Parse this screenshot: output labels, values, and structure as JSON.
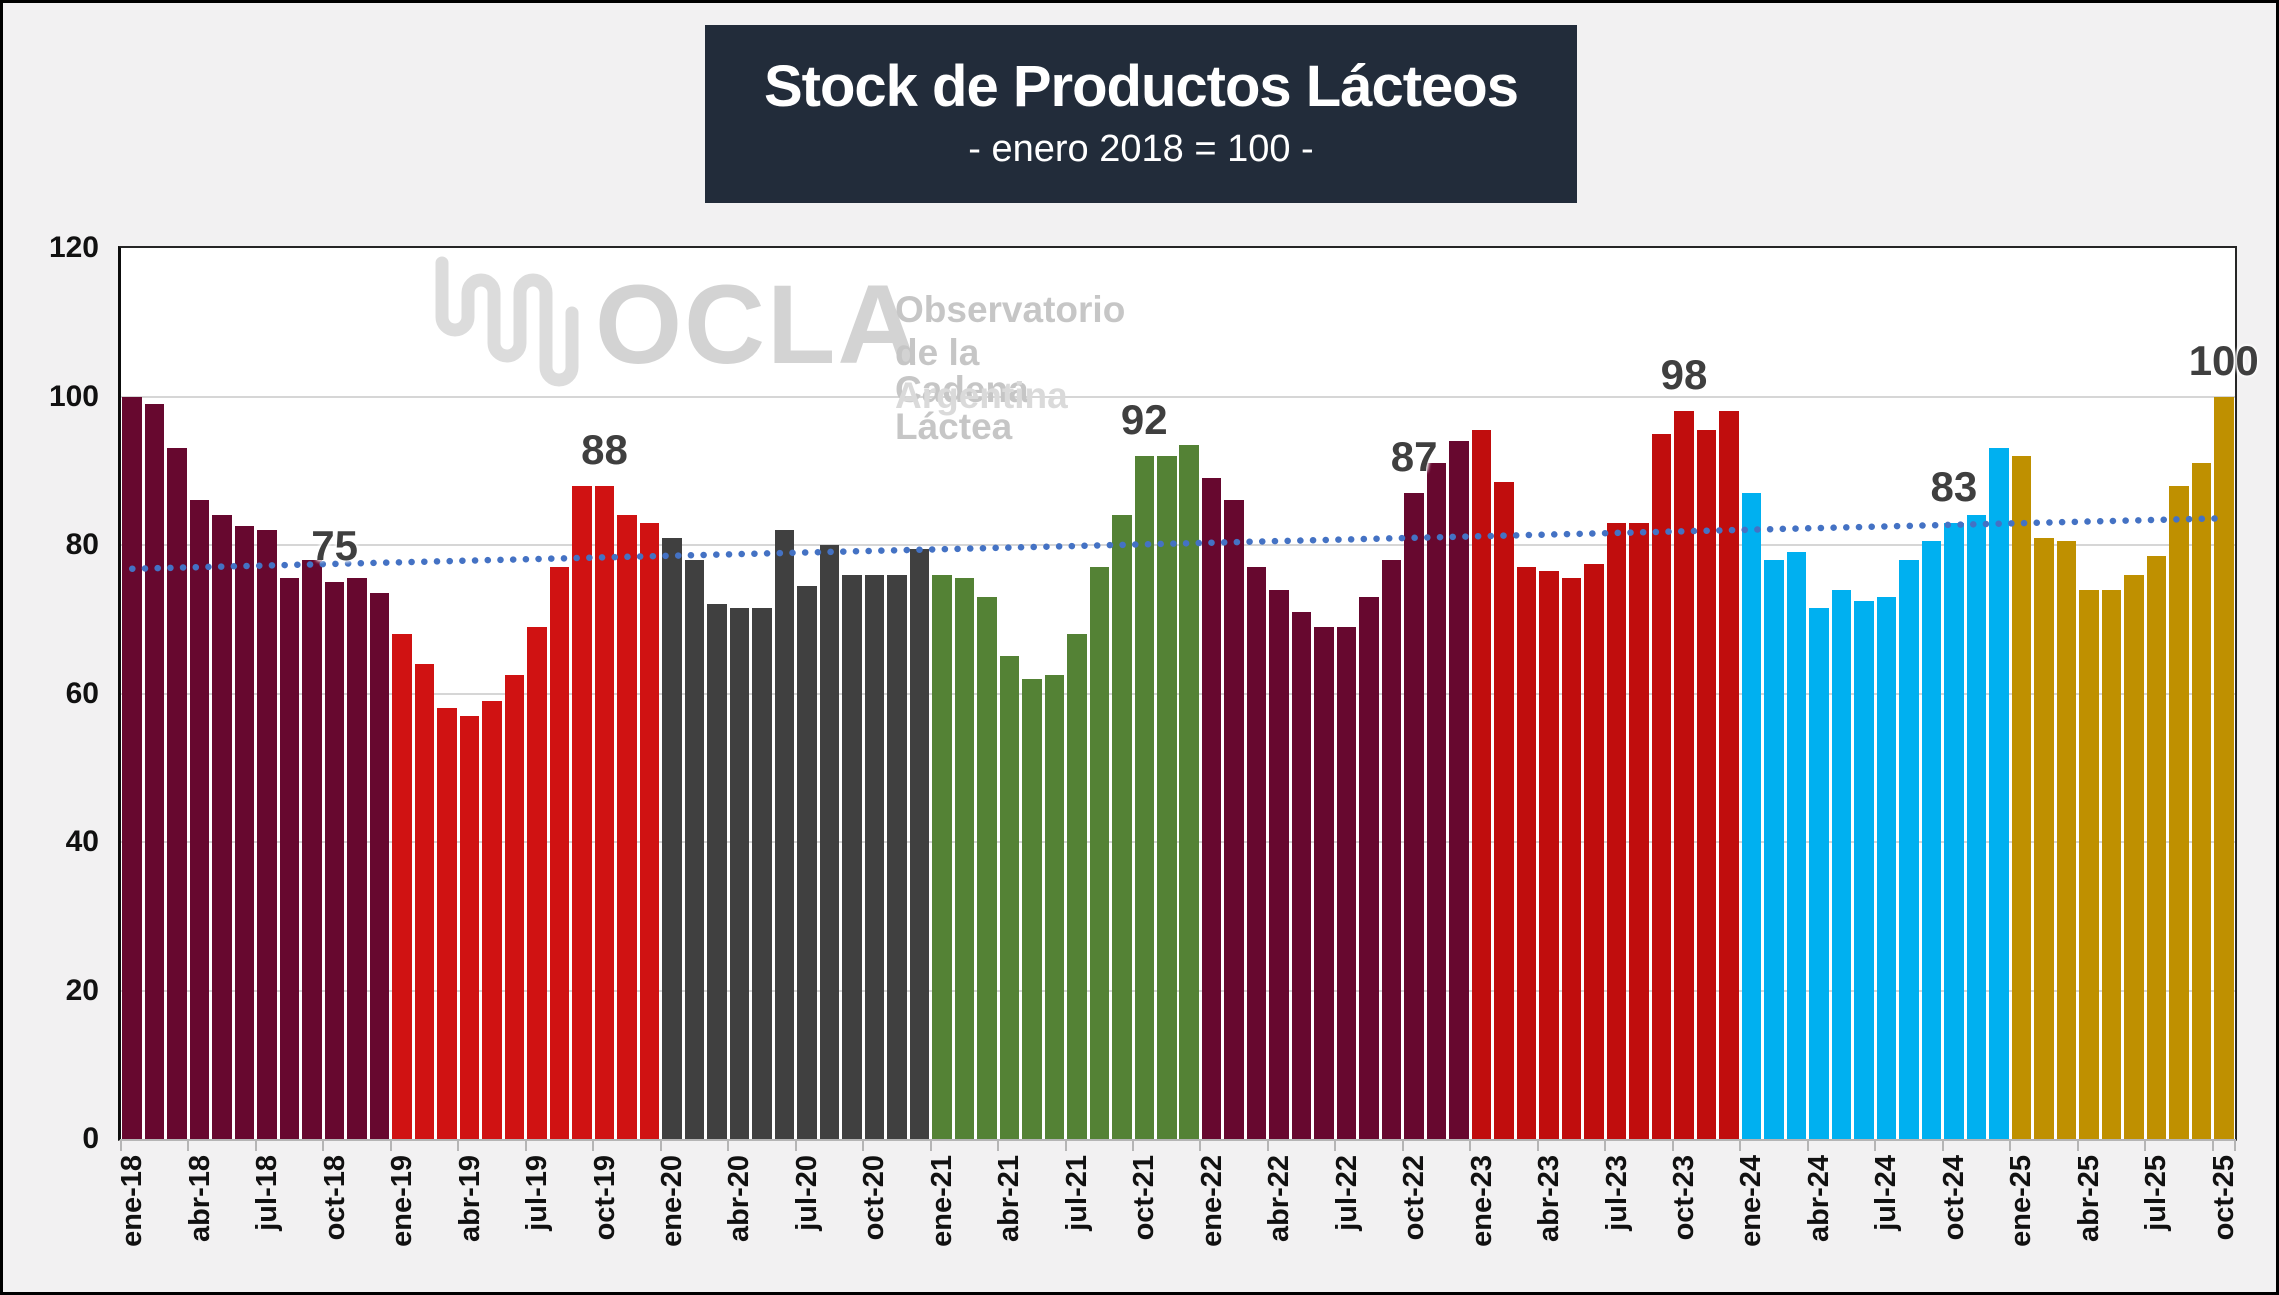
{
  "chart_data": {
    "type": "bar",
    "title": "Stock de Productos Lácteos",
    "subtitle": "- enero 2018 = 100 -",
    "xlabel": "",
    "ylabel": "",
    "ylim": [
      0,
      120
    ],
    "y_ticks": [
      0,
      20,
      40,
      60,
      80,
      100,
      120
    ],
    "grid": true,
    "legend": false,
    "x_tick_interval": 3,
    "categories": [
      "ene-18",
      "feb-18",
      "mar-18",
      "abr-18",
      "may-18",
      "jun-18",
      "jul-18",
      "ago-18",
      "sep-18",
      "oct-18",
      "nov-18",
      "dic-18",
      "ene-19",
      "feb-19",
      "mar-19",
      "abr-19",
      "may-19",
      "jun-19",
      "jul-19",
      "ago-19",
      "sep-19",
      "oct-19",
      "nov-19",
      "dic-19",
      "ene-20",
      "feb-20",
      "mar-20",
      "abr-20",
      "may-20",
      "jun-20",
      "jul-20",
      "ago-20",
      "sep-20",
      "oct-20",
      "nov-20",
      "dic-20",
      "ene-21",
      "feb-21",
      "mar-21",
      "abr-21",
      "may-21",
      "jun-21",
      "jul-21",
      "ago-21",
      "sep-21",
      "oct-21",
      "nov-21",
      "dic-21",
      "ene-22",
      "feb-22",
      "mar-22",
      "abr-22",
      "may-22",
      "jun-22",
      "jul-22",
      "ago-22",
      "sep-22",
      "oct-22",
      "nov-22",
      "dic-22",
      "ene-23",
      "feb-23",
      "mar-23",
      "abr-23",
      "may-23",
      "jun-23",
      "jul-23",
      "ago-23",
      "sep-23",
      "oct-23",
      "nov-23",
      "dic-23",
      "ene-24",
      "feb-24",
      "mar-24",
      "abr-24",
      "may-24",
      "jun-24",
      "jul-24",
      "ago-24",
      "sep-24",
      "oct-24",
      "nov-24",
      "dic-24",
      "ene-25",
      "feb-25",
      "mar-25",
      "abr-25",
      "may-25",
      "jun-25",
      "jul-25",
      "ago-25",
      "sep-25",
      "oct-25"
    ],
    "series": [
      {
        "name": "2018",
        "color": "#67082f",
        "values": [
          100,
          99,
          93,
          86,
          84,
          82.5,
          82,
          75.5,
          78,
          75,
          75.5,
          73.5
        ]
      },
      {
        "name": "2019",
        "color": "#d01212",
        "values": [
          68,
          64,
          58,
          57,
          59,
          62.5,
          69,
          77,
          88,
          88,
          84,
          83
        ]
      },
      {
        "name": "2020",
        "color": "#404040",
        "values": [
          81,
          78,
          72,
          71.5,
          71.5,
          82,
          74.5,
          80,
          76,
          76,
          76,
          79.5
        ]
      },
      {
        "name": "2021",
        "color": "#548235",
        "values": [
          76,
          75.5,
          73,
          65,
          62,
          62.5,
          68,
          77,
          84,
          92,
          92,
          93.5
        ]
      },
      {
        "name": "2022",
        "color": "#67082f",
        "values": [
          89,
          86,
          77,
          74,
          71,
          69,
          69,
          73,
          78,
          87,
          91,
          94
        ]
      },
      {
        "name": "2023",
        "color": "#c00d0d",
        "values": [
          95.5,
          88.5,
          77,
          76.5,
          75.5,
          77.5,
          83,
          83,
          95,
          98,
          95.5,
          98
        ]
      },
      {
        "name": "2024",
        "color": "#00b0f0",
        "values": [
          87,
          78,
          79,
          71.5,
          74,
          72.5,
          73,
          78,
          80.5,
          83,
          84,
          93
        ]
      },
      {
        "name": "2025",
        "color": "#bf9000",
        "values": [
          92,
          81,
          80.5,
          74,
          74,
          76,
          78.5,
          88,
          91,
          100
        ]
      }
    ],
    "data_labels": [
      {
        "category": "oct-18",
        "text": "75"
      },
      {
        "category": "oct-19",
        "text": "88"
      },
      {
        "category": "oct-21",
        "text": "92"
      },
      {
        "category": "oct-22",
        "text": "87"
      },
      {
        "category": "oct-23",
        "text": "98"
      },
      {
        "category": "oct-24",
        "text": "83"
      },
      {
        "category": "oct-25",
        "text": "100"
      }
    ],
    "trend": {
      "style": "dotted",
      "color": "#4472c4",
      "start_value": 76.8,
      "end_value": 83.6
    },
    "watermark": {
      "logo_text": "OCLA",
      "line1": "Observatorio",
      "line2": "de la Cadena Láctea",
      "line3": "Argentina"
    },
    "colors": {
      "page_bg": "#f2f1f2",
      "title_bg": "#222c3a",
      "title_text": "#ffffff",
      "plot_bg": "#ffffff",
      "grid": "#d6d6d6",
      "axis_text": "#111111",
      "data_label": "#3f3f3f",
      "watermark_logo": "#d3d3d3",
      "watermark_text": "#c6c6c6",
      "watermark_light": "#dadada"
    }
  }
}
